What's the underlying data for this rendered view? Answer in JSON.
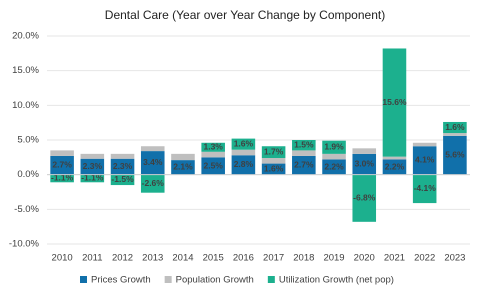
{
  "chart_data": {
    "type": "stacked-bar",
    "title": "Dental Care (Year over Year Change by Component)",
    "categories": [
      "2010",
      "2011",
      "2012",
      "2013",
      "2014",
      "2015",
      "2016",
      "2017",
      "2018",
      "2019",
      "2020",
      "2021",
      "2022",
      "2023"
    ],
    "series": [
      {
        "name": "Prices Growth",
        "color": "#1170aa",
        "label_color": "#ffffff",
        "values": [
          2.7,
          2.3,
          2.3,
          3.4,
          2.1,
          2.5,
          2.8,
          1.6,
          2.7,
          2.2,
          3.0,
          2.2,
          4.1,
          5.6
        ],
        "value_labels": [
          "2.7%",
          "2.3%",
          "2.3%",
          "3.4%",
          "2.1%",
          "2.5%",
          "2.8%",
          "1.6%",
          "2.7%",
          "2.2%",
          "3.0%",
          "2.2%",
          "4.1%",
          "5.6%"
        ]
      },
      {
        "name": "Population Growth",
        "color": "#bfbfbf",
        "values": [
          0.8,
          0.7,
          0.7,
          0.7,
          0.9,
          0.8,
          0.8,
          0.8,
          0.8,
          0.8,
          0.8,
          0.4,
          0.5,
          0.4
        ]
      },
      {
        "name": "Utilization Growth (net pop)",
        "color": "#1cb08e",
        "label_color": "#333333",
        "values": [
          -1.1,
          -1.1,
          -1.5,
          -2.6,
          null,
          1.3,
          1.6,
          1.7,
          1.5,
          1.9,
          -6.8,
          15.6,
          -4.1,
          1.6
        ],
        "value_labels": [
          "-1.1%",
          "-1.1%",
          "-1.5%",
          "-2.6%",
          null,
          "1.3%",
          "1.6%",
          "1.7%",
          "1.5%",
          "1.9%",
          "-6.8%",
          "15.6%",
          "-4.1%",
          "1.6%"
        ]
      }
    ],
    "ylim": [
      -10,
      20
    ],
    "yticks": [
      {
        "value": -10,
        "label": "-10.0%"
      },
      {
        "value": -5,
        "label": "-5.0%"
      },
      {
        "value": 0,
        "label": "0.0%"
      },
      {
        "value": 5,
        "label": "5.0%"
      },
      {
        "value": 10,
        "label": "10.0%"
      },
      {
        "value": 15,
        "label": "15.0%"
      },
      {
        "value": 20,
        "label": "20.0%"
      }
    ],
    "grid": true,
    "legend": "bottom"
  }
}
